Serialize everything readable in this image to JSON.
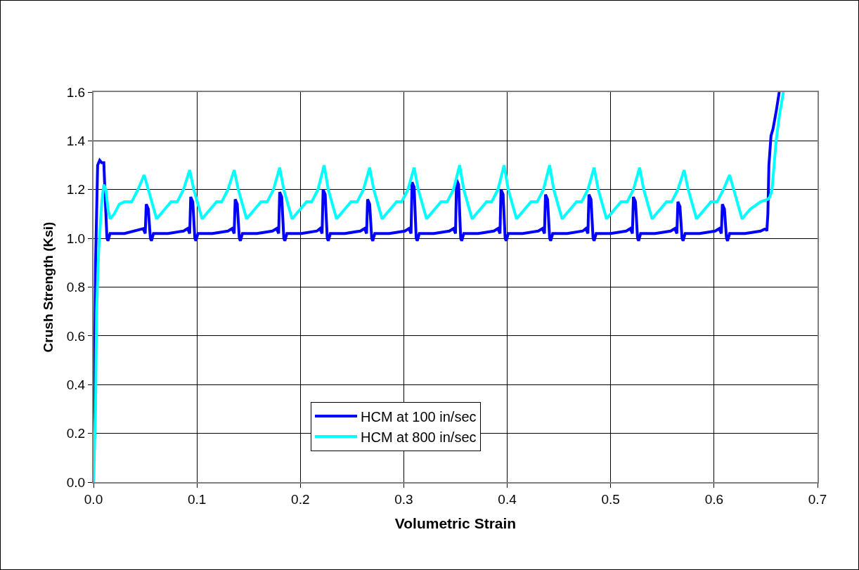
{
  "chart_data": {
    "type": "line",
    "xlabel": "Volumetric Strain",
    "ylabel": "Crush Strength (Ksi)",
    "xlim": [
      0,
      0.7
    ],
    "xticks": [
      {
        "value": 0,
        "label": "0.0"
      },
      0.1,
      0.2,
      0.3,
      0.4,
      0.5,
      0.6,
      0.7
    ],
    "ylim": [
      0,
      1.6
    ],
    "yticks": [
      {
        "value": 0,
        "label": "0.0"
      },
      0.2,
      0.4,
      0.6,
      0.8,
      {
        "value": 1,
        "label": "1.0"
      },
      1.2,
      1.4,
      1.6
    ],
    "grid": true,
    "legend": "bottom",
    "line_style": "solid",
    "series": [
      {
        "name": "HCM at 100 in/sec",
        "color": "#0000ff",
        "x": [
          0,
          0.002,
          0.004,
          0.006,
          0.008,
          0.01,
          0.011,
          0.012,
          0.013,
          0.014,
          0.016,
          0.03,
          0.048,
          0.05,
          0.051,
          0.053,
          0.055,
          0.056,
          0.058,
          0.072,
          0.087,
          0.091,
          0.093,
          0.094,
          0.096,
          0.098,
          0.099,
          0.101,
          0.115,
          0.13,
          0.134,
          0.136,
          0.137,
          0.139,
          0.141,
          0.142,
          0.144,
          0.158,
          0.173,
          0.177,
          0.179,
          0.18,
          0.182,
          0.184,
          0.185,
          0.187,
          0.201,
          0.216,
          0.219,
          0.221,
          0.222,
          0.224,
          0.226,
          0.227,
          0.229,
          0.243,
          0.258,
          0.262,
          0.264,
          0.265,
          0.267,
          0.269,
          0.27,
          0.272,
          0.286,
          0.301,
          0.305,
          0.307,
          0.308,
          0.31,
          0.312,
          0.313,
          0.315,
          0.329,
          0.344,
          0.348,
          0.35,
          0.351,
          0.353,
          0.355,
          0.356,
          0.358,
          0.372,
          0.387,
          0.391,
          0.393,
          0.394,
          0.396,
          0.398,
          0.399,
          0.401,
          0.415,
          0.43,
          0.434,
          0.436,
          0.437,
          0.439,
          0.441,
          0.442,
          0.444,
          0.458,
          0.473,
          0.476,
          0.478,
          0.479,
          0.481,
          0.483,
          0.484,
          0.486,
          0.5,
          0.515,
          0.519,
          0.521,
          0.522,
          0.524,
          0.526,
          0.527,
          0.529,
          0.543,
          0.558,
          0.562,
          0.564,
          0.565,
          0.567,
          0.569,
          0.57,
          0.572,
          0.586,
          0.601,
          0.605,
          0.607,
          0.608,
          0.61,
          0.612,
          0.613,
          0.615,
          0.63,
          0.645,
          0.65,
          0.651,
          0.652,
          0.653,
          0.655,
          0.657,
          0.66,
          0.663
        ],
        "values": [
          0,
          0.9,
          1.3,
          1.32,
          1.31,
          1.31,
          1.2,
          1.1,
          1.0,
          0.99,
          1.02,
          1.02,
          1.04,
          1.02,
          1.14,
          1.12,
          1.0,
          0.99,
          1.02,
          1.02,
          1.03,
          1.04,
          1.02,
          1.17,
          1.15,
          1.0,
          0.99,
          1.02,
          1.02,
          1.03,
          1.04,
          1.02,
          1.16,
          1.14,
          1.0,
          0.99,
          1.02,
          1.02,
          1.03,
          1.04,
          1.02,
          1.19,
          1.17,
          1.0,
          0.99,
          1.02,
          1.02,
          1.03,
          1.04,
          1.02,
          1.2,
          1.18,
          1.0,
          0.99,
          1.02,
          1.02,
          1.03,
          1.04,
          1.02,
          1.16,
          1.14,
          1.0,
          0.99,
          1.02,
          1.02,
          1.03,
          1.04,
          1.02,
          1.23,
          1.21,
          1.0,
          0.99,
          1.02,
          1.02,
          1.03,
          1.04,
          1.02,
          1.24,
          1.22,
          1.0,
          0.99,
          1.02,
          1.02,
          1.03,
          1.04,
          1.02,
          1.2,
          1.18,
          1.0,
          0.99,
          1.02,
          1.02,
          1.03,
          1.04,
          1.02,
          1.18,
          1.16,
          1.0,
          0.99,
          1.02,
          1.02,
          1.03,
          1.04,
          1.02,
          1.18,
          1.16,
          1.0,
          0.99,
          1.02,
          1.02,
          1.03,
          1.04,
          1.02,
          1.17,
          1.15,
          1.0,
          0.99,
          1.02,
          1.02,
          1.03,
          1.04,
          1.02,
          1.15,
          1.13,
          1.0,
          0.99,
          1.02,
          1.02,
          1.03,
          1.04,
          1.02,
          1.14,
          1.12,
          1.0,
          0.99,
          1.02,
          1.02,
          1.03,
          1.04,
          1.03,
          1.1,
          1.3,
          1.42,
          1.45,
          1.52,
          1.6
        ]
      },
      {
        "name": "HCM at 800 in/sec",
        "color": "#00ffff",
        "x": [
          0,
          0.002,
          0.003,
          0.005,
          0.008,
          0.01,
          0.012,
          0.014,
          0.016,
          0.02,
          0.025,
          0.03,
          0.037,
          0.043,
          0.049,
          0.053,
          0.061,
          0.069,
          0.075,
          0.081,
          0.087,
          0.093,
          0.097,
          0.105,
          0.113,
          0.119,
          0.124,
          0.13,
          0.136,
          0.14,
          0.148,
          0.156,
          0.162,
          0.168,
          0.174,
          0.18,
          0.184,
          0.192,
          0.2,
          0.206,
          0.211,
          0.217,
          0.223,
          0.227,
          0.235,
          0.243,
          0.249,
          0.255,
          0.261,
          0.267,
          0.271,
          0.279,
          0.287,
          0.293,
          0.298,
          0.304,
          0.31,
          0.314,
          0.322,
          0.33,
          0.336,
          0.342,
          0.348,
          0.354,
          0.358,
          0.366,
          0.374,
          0.38,
          0.385,
          0.391,
          0.397,
          0.401,
          0.409,
          0.417,
          0.423,
          0.429,
          0.435,
          0.441,
          0.445,
          0.453,
          0.461,
          0.467,
          0.472,
          0.478,
          0.484,
          0.488,
          0.496,
          0.504,
          0.51,
          0.516,
          0.522,
          0.528,
          0.532,
          0.54,
          0.548,
          0.554,
          0.559,
          0.565,
          0.571,
          0.575,
          0.583,
          0.591,
          0.597,
          0.603,
          0.609,
          0.615,
          0.619,
          0.627,
          0.635,
          0.645,
          0.652,
          0.654,
          0.656,
          0.66,
          0.663,
          0.667
        ],
        "values": [
          0,
          0.3,
          0.7,
          0.95,
          1.15,
          1.22,
          1.2,
          1.12,
          1.08,
          1.1,
          1.14,
          1.15,
          1.15,
          1.2,
          1.26,
          1.2,
          1.08,
          1.12,
          1.15,
          1.15,
          1.2,
          1.28,
          1.2,
          1.08,
          1.12,
          1.15,
          1.15,
          1.2,
          1.28,
          1.2,
          1.08,
          1.12,
          1.15,
          1.15,
          1.2,
          1.29,
          1.2,
          1.08,
          1.12,
          1.15,
          1.15,
          1.2,
          1.3,
          1.2,
          1.08,
          1.12,
          1.15,
          1.15,
          1.2,
          1.29,
          1.2,
          1.08,
          1.12,
          1.15,
          1.15,
          1.2,
          1.29,
          1.2,
          1.08,
          1.12,
          1.15,
          1.15,
          1.2,
          1.3,
          1.2,
          1.08,
          1.12,
          1.15,
          1.15,
          1.2,
          1.3,
          1.2,
          1.08,
          1.12,
          1.15,
          1.15,
          1.2,
          1.3,
          1.2,
          1.08,
          1.12,
          1.15,
          1.15,
          1.2,
          1.29,
          1.2,
          1.08,
          1.12,
          1.15,
          1.15,
          1.2,
          1.29,
          1.2,
          1.08,
          1.12,
          1.15,
          1.15,
          1.2,
          1.28,
          1.2,
          1.08,
          1.12,
          1.15,
          1.15,
          1.2,
          1.26,
          1.2,
          1.08,
          1.12,
          1.15,
          1.16,
          1.17,
          1.2,
          1.4,
          1.5,
          1.6
        ]
      }
    ]
  }
}
